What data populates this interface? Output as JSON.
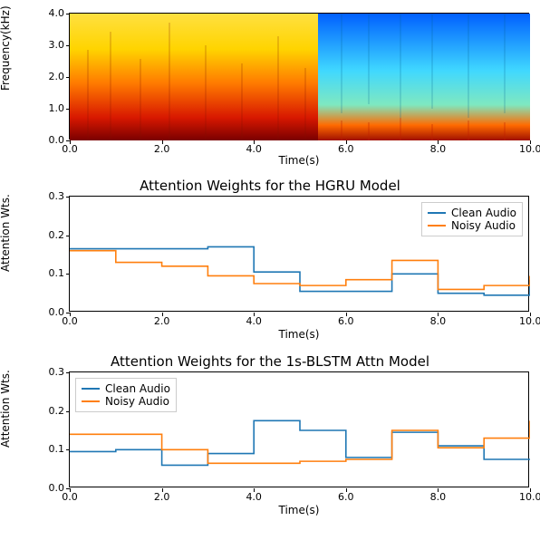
{
  "font_family": "DejaVu Sans",
  "colors": {
    "line_clean": "#1f77b4",
    "line_noisy": "#ff7f0e",
    "axis": "#000000",
    "grid": "#ffffff",
    "background": "#ffffff",
    "tick": "#000000",
    "legend_border": "#cccccc"
  },
  "spectrogram": {
    "type": "heatmap",
    "xlabel": "Time(s)",
    "ylabel": "Frequency(kHz)",
    "xlim": [
      0,
      10
    ],
    "ylim": [
      0,
      4
    ],
    "xticks": [
      0.0,
      2.0,
      4.0,
      6.0,
      8.0,
      10.0
    ],
    "yticks": [
      0.0,
      1.0,
      2.0,
      3.0,
      4.0
    ],
    "xtick_labels": [
      "0.0",
      "2.0",
      "4.0",
      "6.0",
      "8.0",
      "10.0"
    ],
    "ytick_labels": [
      "0.0",
      "1.0",
      "2.0",
      "3.0",
      "4.0"
    ],
    "label_fontsize": 12,
    "tick_fontsize": 11,
    "colormap_stops": [
      "#000080",
      "#0000ff",
      "#0080ff",
      "#00ffff",
      "#80ff80",
      "#ffff00",
      "#ff8000",
      "#ff0000",
      "#800000"
    ],
    "left_region_dominant": [
      "#ff4000",
      "#ffdd00",
      "#a00000"
    ],
    "right_region_dominant": [
      "#40e0ff",
      "#0090ff",
      "#c02000"
    ],
    "split_time": 5.4
  },
  "chart_hgru": {
    "type": "step-line",
    "title": "Attention Weights for the HGRU Model",
    "title_fontsize": 15,
    "xlabel": "Time(s)",
    "ylabel": "Attention Wts.",
    "xlim": [
      0,
      10
    ],
    "ylim": [
      0,
      0.3
    ],
    "xticks": [
      0.0,
      2.0,
      4.0,
      6.0,
      8.0,
      10.0
    ],
    "yticks": [
      0.0,
      0.1,
      0.2,
      0.3
    ],
    "xtick_labels": [
      "0.0",
      "2.0",
      "4.0",
      "6.0",
      "8.0",
      "10.0"
    ],
    "ytick_labels": [
      "0.0",
      "0.1",
      "0.2",
      "0.3"
    ],
    "legend": {
      "position": "top-right",
      "items": [
        {
          "label": "Clean Audio",
          "color": "#1f77b4"
        },
        {
          "label": "Noisy Audio",
          "color": "#ff7f0e"
        }
      ]
    },
    "series": [
      {
        "name": "Clean Audio",
        "color": "#1f77b4",
        "line_width": 1.6,
        "step_x": [
          0,
          1,
          2,
          3,
          4,
          5,
          6,
          7,
          8,
          9,
          10
        ],
        "step_y": [
          0.165,
          0.165,
          0.165,
          0.17,
          0.105,
          0.055,
          0.055,
          0.1,
          0.05,
          0.045,
          0.085
        ]
      },
      {
        "name": "Noisy Audio",
        "color": "#ff7f0e",
        "line_width": 1.6,
        "step_x": [
          0,
          1,
          2,
          3,
          4,
          5,
          6,
          7,
          8,
          9,
          10
        ],
        "step_y": [
          0.16,
          0.13,
          0.12,
          0.095,
          0.075,
          0.07,
          0.085,
          0.135,
          0.06,
          0.07,
          0.095
        ]
      }
    ]
  },
  "chart_blstm": {
    "type": "step-line",
    "title": "Attention Weights for the 1s-BLSTM Attn Model",
    "title_fontsize": 15,
    "xlabel": "Time(s)",
    "ylabel": "Attention Wts.",
    "xlim": [
      0,
      10
    ],
    "ylim": [
      0,
      0.3
    ],
    "xticks": [
      0.0,
      2.0,
      4.0,
      6.0,
      8.0,
      10.0
    ],
    "yticks": [
      0.0,
      0.1,
      0.2,
      0.3
    ],
    "xtick_labels": [
      "0.0",
      "2.0",
      "4.0",
      "6.0",
      "8.0",
      "10.0"
    ],
    "ytick_labels": [
      "0.0",
      "0.1",
      "0.2",
      "0.3"
    ],
    "legend": {
      "position": "top-left",
      "items": [
        {
          "label": "Clean Audio",
          "color": "#1f77b4"
        },
        {
          "label": "Noisy Audio",
          "color": "#ff7f0e"
        }
      ]
    },
    "series": [
      {
        "name": "Clean Audio",
        "color": "#1f77b4",
        "line_width": 1.6,
        "step_x": [
          0,
          1,
          2,
          3,
          4,
          5,
          6,
          7,
          8,
          9,
          10
        ],
        "step_y": [
          0.095,
          0.1,
          0.06,
          0.09,
          0.175,
          0.15,
          0.08,
          0.145,
          0.11,
          0.075,
          0.075
        ]
      },
      {
        "name": "Noisy Audio",
        "color": "#ff7f0e",
        "line_width": 1.6,
        "step_x": [
          0,
          1,
          2,
          3,
          4,
          5,
          6,
          7,
          8,
          9,
          10
        ],
        "step_y": [
          0.14,
          0.14,
          0.1,
          0.065,
          0.065,
          0.07,
          0.075,
          0.15,
          0.105,
          0.13,
          0.175
        ]
      }
    ]
  }
}
